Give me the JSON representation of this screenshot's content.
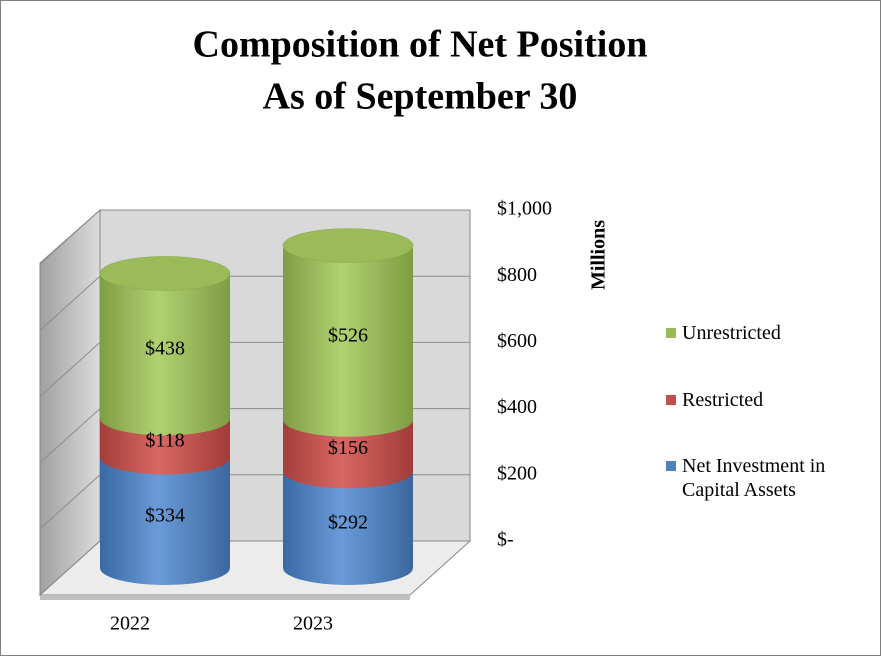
{
  "chart_data": {
    "type": "bar",
    "title": "Composition of Net Position",
    "subtitle": "As of September 30",
    "y_label": "Millions",
    "categories": [
      "2022",
      "2023"
    ],
    "series": [
      {
        "name": "Net Investment in Capital Assets",
        "color": "#4f81bd",
        "values": [
          334,
          292
        ],
        "value_labels": [
          "$334",
          "$292"
        ]
      },
      {
        "name": "Restricted",
        "color": "#c0504d",
        "values": [
          118,
          156
        ],
        "value_labels": [
          "$118",
          "$156"
        ]
      },
      {
        "name": "Unrestricted",
        "color": "#9bbb59",
        "values": [
          438,
          526
        ],
        "value_labels": [
          "$438",
          "$526"
        ]
      }
    ],
    "ylim": [
      0,
      1000
    ],
    "yticks": [
      {
        "value": 0,
        "label": "$-"
      },
      {
        "value": 200,
        "label": "$200"
      },
      {
        "value": 400,
        "label": "$400"
      },
      {
        "value": 600,
        "label": "$600"
      },
      {
        "value": 800,
        "label": "$800"
      },
      {
        "value": 1000,
        "label": "$1,000"
      }
    ],
    "grid": true,
    "legend": "right"
  }
}
